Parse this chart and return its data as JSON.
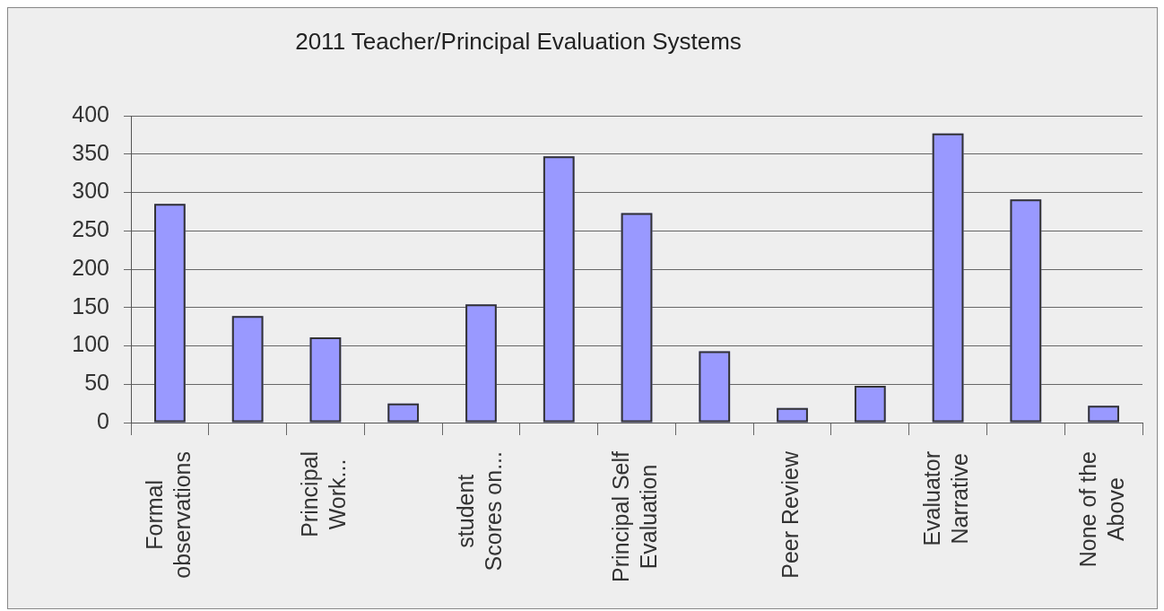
{
  "chart_data": {
    "type": "bar",
    "title": "2011 Teacher/Principal Evaluation Systems",
    "categories": [
      "Formal observations",
      null,
      "Principal Work...",
      null,
      "student Scores on...",
      null,
      "Principal Self Evaluation",
      null,
      "Peer Review",
      null,
      "Evaluator Narrative",
      null,
      "None of the Above"
    ],
    "values": [
      285,
      139,
      111,
      25,
      154,
      347,
      273,
      93,
      19,
      48,
      377,
      291,
      22
    ],
    "color": "#9999ff",
    "ylim": [
      0,
      400
    ],
    "yticks": [
      0,
      50,
      100,
      150,
      200,
      250,
      300,
      350,
      400
    ],
    "grid": "y"
  }
}
